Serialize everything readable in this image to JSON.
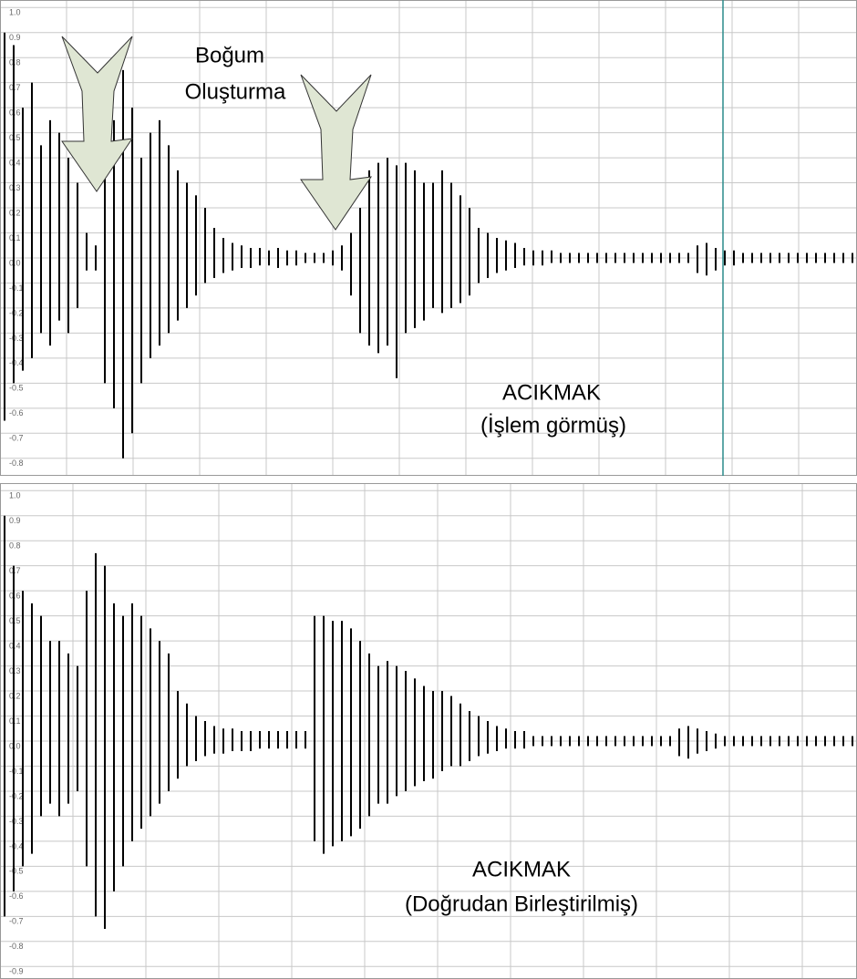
{
  "chart_data": [
    {
      "type": "range",
      "annotations": [
        "Boğum",
        "Oluşturma",
        "ACIKMAK",
        "(İşlem görmüş)"
      ],
      "ylim": [
        -0.87,
        1.03
      ],
      "yticks": [
        {
          "value": 1,
          "label": "1.0"
        },
        0.9,
        0.8,
        0.7,
        0.6,
        0.5,
        0.4,
        0.3,
        0.2,
        0.1,
        {
          "value": 0,
          "label": "0.0"
        },
        -0.1,
        -0.2,
        -0.3,
        -0.4,
        -0.5,
        -0.6,
        -0.7,
        -0.8
      ],
      "grid": true,
      "color": "#000000",
      "high": [
        0.9,
        0.85,
        0.6,
        0.7,
        0.45,
        0.55,
        0.5,
        0.4,
        0.3,
        0.1,
        0.05,
        0.35,
        0.55,
        0.75,
        0.6,
        0.4,
        0.5,
        0.55,
        0.45,
        0.35,
        0.3,
        0.25,
        0.2,
        0.12,
        0.08,
        0.06,
        0.05,
        0.04,
        0.04,
        0.03,
        0.04,
        0.03,
        0.03,
        0.02,
        0.02,
        0.02,
        0.03,
        0.05,
        0.1,
        0.2,
        0.35,
        0.38,
        0.4,
        0.37,
        0.38,
        0.35,
        0.3,
        0.3,
        0.35,
        0.3,
        0.25,
        0.2,
        0.12,
        0.1,
        0.08,
        0.07,
        0.06,
        0.04,
        0.03,
        0.03,
        0.03,
        0.02,
        0.02,
        0.02,
        0.02,
        0.02,
        0.02,
        0.02,
        0.02,
        0.02,
        0.02,
        0.02,
        0.02,
        0.02,
        0.02,
        0.02,
        0.05,
        0.06,
        0.04,
        0.03,
        0.03,
        0.02,
        0.02,
        0.02,
        0.02,
        0.02,
        0.02,
        0.02,
        0.02,
        0.02,
        0.02,
        0.02,
        0.02,
        0.02
      ],
      "low": [
        -0.65,
        -0.5,
        -0.45,
        -0.4,
        -0.3,
        -0.35,
        -0.25,
        -0.3,
        -0.2,
        -0.05,
        -0.05,
        -0.5,
        -0.6,
        -0.8,
        -0.7,
        -0.5,
        -0.4,
        -0.35,
        -0.3,
        -0.25,
        -0.2,
        -0.15,
        -0.1,
        -0.08,
        -0.06,
        -0.05,
        -0.04,
        -0.04,
        -0.03,
        -0.03,
        -0.04,
        -0.03,
        -0.03,
        -0.02,
        -0.02,
        -0.02,
        -0.03,
        -0.05,
        -0.15,
        -0.3,
        -0.35,
        -0.38,
        -0.35,
        -0.48,
        -0.3,
        -0.28,
        -0.25,
        -0.2,
        -0.22,
        -0.2,
        -0.18,
        -0.15,
        -0.1,
        -0.08,
        -0.06,
        -0.05,
        -0.04,
        -0.03,
        -0.03,
        -0.03,
        -0.02,
        -0.02,
        -0.02,
        -0.02,
        -0.02,
        -0.02,
        -0.02,
        -0.02,
        -0.02,
        -0.02,
        -0.02,
        -0.02,
        -0.02,
        -0.02,
        -0.02,
        -0.02,
        -0.06,
        -0.07,
        -0.05,
        -0.03,
        -0.03,
        -0.02,
        -0.02,
        -0.02,
        -0.02,
        -0.02,
        -0.02,
        -0.02,
        -0.02,
        -0.02,
        -0.02,
        -0.02,
        -0.02,
        -0.02
      ]
    },
    {
      "type": "range",
      "annotations": [
        "ACIKMAK",
        "(Doğrudan Birleştirilmiş)"
      ],
      "ylim": [
        -0.95,
        1.03
      ],
      "yticks": [
        {
          "value": 1,
          "label": "1.0"
        },
        0.9,
        0.8,
        0.7,
        0.6,
        0.5,
        0.4,
        0.3,
        0.2,
        0.1,
        {
          "value": 0,
          "label": "0.0"
        },
        -0.1,
        -0.2,
        -0.3,
        -0.4,
        -0.5,
        -0.6,
        -0.7,
        -0.8,
        -0.9
      ],
      "grid": true,
      "color": "#000000",
      "high": [
        0.9,
        0.7,
        0.6,
        0.55,
        0.5,
        0.4,
        0.4,
        0.35,
        0.3,
        0.6,
        0.75,
        0.7,
        0.55,
        0.5,
        0.55,
        0.5,
        0.45,
        0.4,
        0.35,
        0.2,
        0.15,
        0.1,
        0.08,
        0.06,
        0.05,
        0.05,
        0.04,
        0.04,
        0.04,
        0.04,
        0.04,
        0.04,
        0.04,
        0.04,
        0.5,
        0.5,
        0.48,
        0.48,
        0.45,
        0.4,
        0.35,
        0.3,
        0.32,
        0.3,
        0.28,
        0.25,
        0.22,
        0.2,
        0.2,
        0.18,
        0.15,
        0.12,
        0.1,
        0.08,
        0.06,
        0.05,
        0.04,
        0.04,
        0.02,
        0.02,
        0.02,
        0.02,
        0.02,
        0.02,
        0.02,
        0.02,
        0.02,
        0.02,
        0.02,
        0.02,
        0.02,
        0.02,
        0.02,
        0.02,
        0.05,
        0.06,
        0.05,
        0.04,
        0.03,
        0.02,
        0.02,
        0.02,
        0.02,
        0.02,
        0.02,
        0.02,
        0.02,
        0.02,
        0.02,
        0.02,
        0.02,
        0.02,
        0.02,
        0.02
      ],
      "low": [
        -0.7,
        -0.6,
        -0.5,
        -0.45,
        -0.3,
        -0.25,
        -0.3,
        -0.25,
        -0.2,
        -0.5,
        -0.7,
        -0.75,
        -0.6,
        -0.5,
        -0.4,
        -0.35,
        -0.3,
        -0.25,
        -0.2,
        -0.15,
        -0.1,
        -0.08,
        -0.06,
        -0.05,
        -0.05,
        -0.04,
        -0.04,
        -0.04,
        -0.03,
        -0.03,
        -0.03,
        -0.03,
        -0.03,
        -0.03,
        -0.4,
        -0.45,
        -0.42,
        -0.4,
        -0.38,
        -0.35,
        -0.3,
        -0.25,
        -0.25,
        -0.22,
        -0.2,
        -0.18,
        -0.16,
        -0.15,
        -0.12,
        -0.1,
        -0.1,
        -0.08,
        -0.06,
        -0.05,
        -0.04,
        -0.03,
        -0.03,
        -0.03,
        -0.02,
        -0.02,
        -0.02,
        -0.02,
        -0.02,
        -0.02,
        -0.02,
        -0.02,
        -0.02,
        -0.02,
        -0.02,
        -0.02,
        -0.02,
        -0.02,
        -0.02,
        -0.02,
        -0.06,
        -0.07,
        -0.05,
        -0.04,
        -0.03,
        -0.02,
        -0.02,
        -0.02,
        -0.02,
        -0.02,
        -0.02,
        -0.02,
        -0.02,
        -0.02,
        -0.02,
        -0.02,
        -0.02,
        -0.02,
        -0.02,
        -0.02
      ]
    }
  ]
}
